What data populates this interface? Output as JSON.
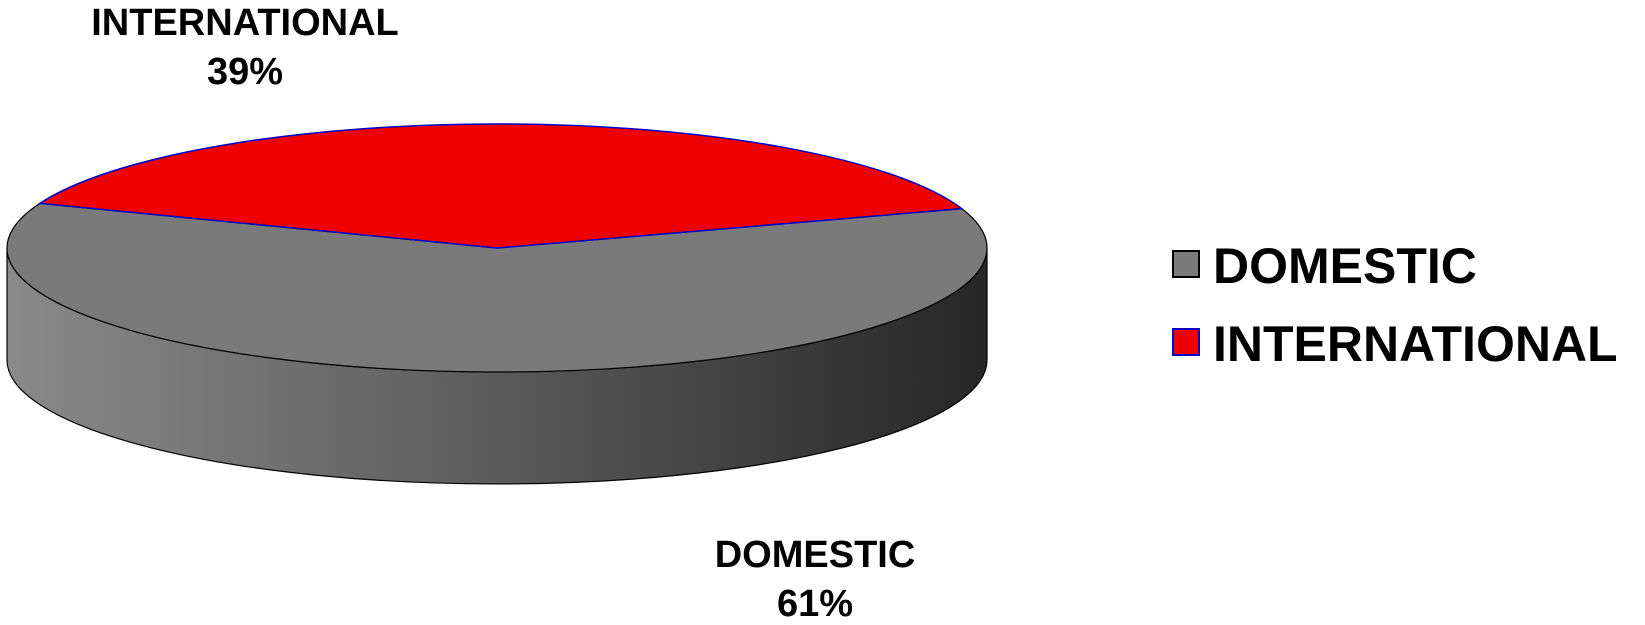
{
  "chart_data": {
    "type": "pie",
    "style": "3d",
    "title": "",
    "slices": [
      {
        "label": "DOMESTIC",
        "value": 61,
        "display": "61%",
        "color": "#7a7a7a"
      },
      {
        "label": "INTERNATIONAL",
        "value": 39,
        "display": "39%",
        "color": "#ee0000"
      }
    ],
    "legend": {
      "position": "right",
      "entries": [
        "DOMESTIC",
        "INTERNATIONAL"
      ]
    }
  }
}
